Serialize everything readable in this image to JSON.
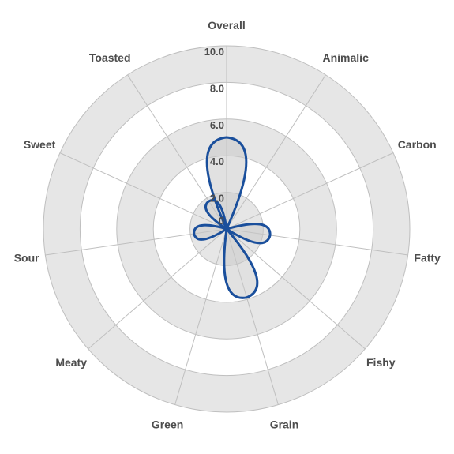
{
  "chart_data": {
    "type": "radar",
    "categories": [
      "Overall",
      "Animalic",
      "Carbon",
      "Fatty",
      "Fishy",
      "Grain",
      "Green",
      "Meaty",
      "Sour",
      "Sweet",
      "Toasted"
    ],
    "series": [
      {
        "values": [
          5.0,
          0.1,
          0.1,
          2.4,
          0.1,
          3.9,
          0.1,
          0.1,
          1.8,
          0.1,
          1.8
        ]
      }
    ],
    "rlim": [
      0,
      10
    ],
    "r_ticks": [
      "0",
      "2.0",
      "4.0",
      "6.0",
      "8.0",
      "10.0"
    ],
    "r_tick_values": [
      0,
      2,
      4,
      6,
      8,
      10
    ],
    "band_colors": [
      "#e6e6e6",
      "#ffffff"
    ],
    "line_color": "#1a4f9c",
    "fill_color": "#c8c8c8",
    "spoke_color": "#bfbfbf"
  }
}
